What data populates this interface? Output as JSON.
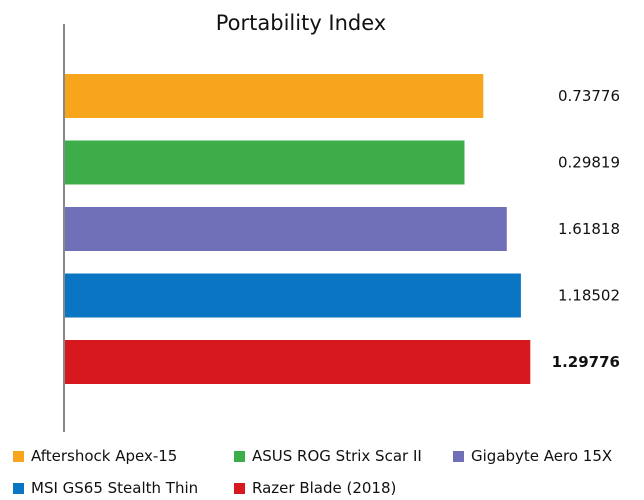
{
  "chart_data": {
    "type": "bar",
    "orientation": "horizontal",
    "title": "Portability Index",
    "xlabel": "",
    "ylabel": "",
    "grid": false,
    "legend_position": "bottom",
    "categories": [
      "Aftershock Apex-15",
      "ASUS ROG Strix Scar II",
      "Gigabyte Aero 15X",
      "MSI GS65 Stealth Thin",
      "Razer Blade (2018)"
    ],
    "value_labels": [
      "0.73776",
      "0.29819",
      "1.61818",
      "1.18502",
      "1.29776"
    ],
    "bar_fill_fraction": [
      0.89,
      0.85,
      0.94,
      0.97,
      0.99
    ],
    "highlighted": [
      false,
      false,
      false,
      false,
      true
    ],
    "colors": [
      "#f7a51c",
      "#3cad49",
      "#6f70b8",
      "#0a75c2",
      "#d7191f"
    ]
  }
}
